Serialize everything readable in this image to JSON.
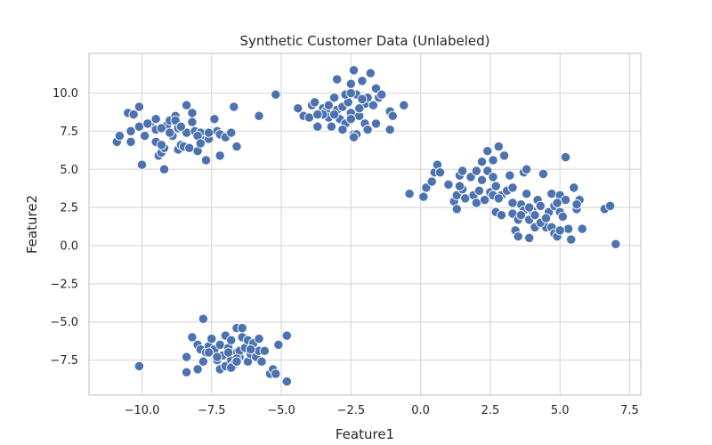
{
  "chart_data": {
    "type": "scatter",
    "title": "Synthetic Customer Data (Unlabeled)",
    "xlabel": "Feature1",
    "ylabel": "Feature2",
    "xlim": [
      -11.9,
      7.9
    ],
    "ylim": [
      -9.8,
      12.6
    ],
    "x_ticks": [
      -10,
      -7.5,
      -5,
      -2.5,
      0,
      2.5,
      5,
      7.5
    ],
    "x_tick_labels": [
      "−10.0",
      "−7.5",
      "−5.0",
      "−2.5",
      "0.0",
      "2.5",
      "5.0",
      "7.5"
    ],
    "y_ticks": [
      10,
      7.5,
      5,
      2.5,
      0,
      -2.5,
      -5,
      -7.5
    ],
    "y_tick_labels": [
      "10.0",
      "7.5",
      "5.0",
      "2.5",
      "0.0",
      "−2.5",
      "−5.0",
      "−7.5"
    ],
    "grid": true,
    "colors": {
      "marker": "#4C72B0",
      "marker_edge": "#ffffff",
      "grid": "#d9d9d9",
      "frame": "#cccccc",
      "text": "#262626"
    },
    "points": [
      [
        -10.9,
        6.8
      ],
      [
        -10.8,
        7.2
      ],
      [
        -10.5,
        8.7
      ],
      [
        -10.4,
        7.5
      ],
      [
        -10.4,
        6.8
      ],
      [
        -10.3,
        8.6
      ],
      [
        -10.1,
        9.1
      ],
      [
        -10.1,
        7.8
      ],
      [
        -9.9,
        7.2
      ],
      [
        -9.7,
        8.0
      ],
      [
        -9.5,
        6.8
      ],
      [
        -9.5,
        7.6
      ],
      [
        -9.4,
        5.9
      ],
      [
        -9.3,
        6.1
      ],
      [
        -9.2,
        6.4
      ],
      [
        -9.1,
        7.9
      ],
      [
        -9.0,
        8.2
      ],
      [
        -8.9,
        7.2
      ],
      [
        -8.8,
        8.5
      ],
      [
        -8.7,
        6.3
      ],
      [
        -8.7,
        7.7
      ],
      [
        -8.6,
        6.6
      ],
      [
        -8.5,
        6.5
      ],
      [
        -8.4,
        7.4
      ],
      [
        -8.4,
        9.2
      ],
      [
        -8.3,
        6.4
      ],
      [
        -8.2,
        8.1
      ],
      [
        -8.2,
        8.7
      ],
      [
        -8.1,
        7.5
      ],
      [
        -8.0,
        6.2
      ],
      [
        -7.9,
        7.4
      ],
      [
        -7.8,
        6.9
      ],
      [
        -7.7,
        5.6
      ],
      [
        -7.6,
        7.0
      ],
      [
        -7.4,
        8.3
      ],
      [
        -7.3,
        7.5
      ],
      [
        -7.2,
        7.3
      ],
      [
        -7.2,
        5.9
      ],
      [
        -7.0,
        7.1
      ],
      [
        -6.8,
        7.4
      ],
      [
        -6.7,
        9.1
      ],
      [
        -6.6,
        6.5
      ],
      [
        -10.0,
        5.3
      ],
      [
        -9.2,
        5.0
      ],
      [
        -9.5,
        8.3
      ],
      [
        -9.0,
        7.4
      ],
      [
        -8.0,
        7.2
      ],
      [
        -8.8,
        8.2
      ],
      [
        -9.8,
        8.0
      ],
      [
        -9.3,
        7.7
      ],
      [
        -8.6,
        7.8
      ],
      [
        -7.6,
        7.4
      ],
      [
        -7.9,
        6.7
      ],
      [
        -9.3,
        6.6
      ],
      [
        -5.8,
        8.5
      ],
      [
        -5.2,
        9.9
      ],
      [
        -4.4,
        9.0
      ],
      [
        -4.2,
        8.5
      ],
      [
        -4.0,
        8.4
      ],
      [
        -3.9,
        9.2
      ],
      [
        -3.8,
        9.4
      ],
      [
        -3.7,
        7.8
      ],
      [
        -3.5,
        9.0
      ],
      [
        -3.4,
        8.8
      ],
      [
        -3.3,
        8.4
      ],
      [
        -3.2,
        7.8
      ],
      [
        -3.1,
        9.7
      ],
      [
        -3.0,
        10.9
      ],
      [
        -3.0,
        8.9
      ],
      [
        -2.9,
        8.3
      ],
      [
        -2.8,
        9.1
      ],
      [
        -2.7,
        8.0
      ],
      [
        -2.6,
        9.4
      ],
      [
        -2.5,
        10.6
      ],
      [
        -2.5,
        8.7
      ],
      [
        -2.4,
        11.5
      ],
      [
        -2.4,
        7.3
      ],
      [
        -2.3,
        9.9
      ],
      [
        -2.2,
        8.5
      ],
      [
        -2.1,
        10.8
      ],
      [
        -2.0,
        9.3
      ],
      [
        -2.0,
        8.0
      ],
      [
        -1.9,
        7.6
      ],
      [
        -1.8,
        11.3
      ],
      [
        -1.7,
        9.2
      ],
      [
        -1.6,
        10.3
      ],
      [
        -1.5,
        9.7
      ],
      [
        -1.4,
        9.9
      ],
      [
        -1.1,
        8.8
      ],
      [
        -1.1,
        7.6
      ],
      [
        -0.6,
        9.2
      ],
      [
        -3.5,
        8.6
      ],
      [
        -3.1,
        8.6
      ],
      [
        -2.7,
        9.9
      ],
      [
        -2.5,
        8.3
      ],
      [
        -2.2,
        9.0
      ],
      [
        -1.6,
        8.0
      ],
      [
        -3.7,
        8.6
      ],
      [
        -2.8,
        7.6
      ],
      [
        -2.3,
        7.3
      ],
      [
        -3.3,
        9.2
      ],
      [
        -2.5,
        10.0
      ],
      [
        -1.9,
        9.7
      ],
      [
        -1.0,
        8.5
      ],
      [
        -2.4,
        7.1
      ],
      [
        -2.1,
        9.6
      ],
      [
        -10.1,
        -7.9
      ],
      [
        -8.4,
        -7.3
      ],
      [
        -8.4,
        -8.3
      ],
      [
        -8.2,
        -6.0
      ],
      [
        -8.0,
        -8.1
      ],
      [
        -8.0,
        -6.5
      ],
      [
        -7.9,
        -6.8
      ],
      [
        -7.8,
        -4.8
      ],
      [
        -7.8,
        -7.6
      ],
      [
        -7.7,
        -7.0
      ],
      [
        -7.6,
        -6.6
      ],
      [
        -7.5,
        -6.1
      ],
      [
        -7.4,
        -6.8
      ],
      [
        -7.3,
        -7.5
      ],
      [
        -7.2,
        -8.1
      ],
      [
        -7.2,
        -6.5
      ],
      [
        -7.1,
        -7.2
      ],
      [
        -7.0,
        -5.9
      ],
      [
        -7.0,
        -7.9
      ],
      [
        -6.9,
        -6.7
      ],
      [
        -6.8,
        -7.5
      ],
      [
        -6.8,
        -6.2
      ],
      [
        -6.7,
        -7.8
      ],
      [
        -6.6,
        -5.4
      ],
      [
        -6.6,
        -7.0
      ],
      [
        -6.5,
        -7.3
      ],
      [
        -6.5,
        -6.9
      ],
      [
        -6.4,
        -6.0
      ],
      [
        -6.4,
        -5.4
      ],
      [
        -6.3,
        -6.7
      ],
      [
        -6.2,
        -7.6
      ],
      [
        -6.2,
        -6.2
      ],
      [
        -6.1,
        -7.1
      ],
      [
        -6.0,
        -6.4
      ],
      [
        -5.9,
        -7.3
      ],
      [
        -5.8,
        -6.9
      ],
      [
        -5.8,
        -6.1
      ],
      [
        -5.7,
        -7.6
      ],
      [
        -5.6,
        -6.9
      ],
      [
        -5.4,
        -8.4
      ],
      [
        -5.3,
        -8.1
      ],
      [
        -5.2,
        -8.4
      ],
      [
        -5.1,
        -6.5
      ],
      [
        -4.8,
        -5.9
      ],
      [
        -4.8,
        -8.9
      ],
      [
        -7.3,
        -7.3
      ],
      [
        -6.6,
        -7.4
      ],
      [
        -6.9,
        -7.0
      ],
      [
        -6.1,
        -6.8
      ],
      [
        -6.8,
        -8.0
      ],
      [
        -7.6,
        -7.0
      ],
      [
        -6.6,
        -7.6
      ],
      [
        -0.4,
        3.4
      ],
      [
        0.1,
        3.2
      ],
      [
        0.2,
        3.8
      ],
      [
        0.4,
        4.2
      ],
      [
        0.5,
        4.8
      ],
      [
        0.6,
        5.3
      ],
      [
        0.7,
        4.8
      ],
      [
        1.0,
        4.0
      ],
      [
        1.2,
        2.9
      ],
      [
        1.3,
        2.4
      ],
      [
        1.3,
        3.3
      ],
      [
        1.4,
        4.6
      ],
      [
        1.5,
        3.7
      ],
      [
        1.5,
        4.9
      ],
      [
        1.6,
        3.1
      ],
      [
        1.8,
        4.5
      ],
      [
        1.9,
        3.3
      ],
      [
        2.0,
        2.8
      ],
      [
        2.1,
        3.6
      ],
      [
        2.2,
        4.3
      ],
      [
        2.2,
        5.5
      ],
      [
        2.3,
        3.0
      ],
      [
        2.4,
        4.9
      ],
      [
        2.4,
        6.2
      ],
      [
        2.5,
        3.5
      ],
      [
        2.6,
        4.5
      ],
      [
        2.6,
        5.6
      ],
      [
        2.7,
        2.2
      ],
      [
        2.7,
        3.9
      ],
      [
        2.8,
        6.5
      ],
      [
        2.9,
        3.3
      ],
      [
        2.9,
        2.0
      ],
      [
        3.0,
        5.9
      ],
      [
        3.1,
        3.6
      ],
      [
        3.2,
        4.6
      ],
      [
        3.3,
        2.1
      ],
      [
        3.3,
        3.8
      ],
      [
        3.4,
        1.0
      ],
      [
        3.5,
        1.7
      ],
      [
        3.5,
        0.6
      ],
      [
        3.6,
        2.7
      ],
      [
        3.7,
        4.8
      ],
      [
        3.7,
        2.3
      ],
      [
        3.8,
        5.0
      ],
      [
        3.8,
        3.4
      ],
      [
        3.9,
        1.7
      ],
      [
        3.9,
        0.5
      ],
      [
        4.0,
        2.3
      ],
      [
        4.1,
        1.2
      ],
      [
        4.1,
        2.0
      ],
      [
        4.2,
        3.0
      ],
      [
        4.3,
        2.6
      ],
      [
        4.4,
        4.7
      ],
      [
        4.5,
        1.2
      ],
      [
        4.6,
        2.2
      ],
      [
        4.7,
        3.4
      ],
      [
        4.7,
        1.2
      ],
      [
        4.8,
        0.8
      ],
      [
        4.8,
        2.6
      ],
      [
        4.9,
        0.6
      ],
      [
        5.0,
        3.3
      ],
      [
        5.0,
        2.2
      ],
      [
        5.1,
        1.9
      ],
      [
        5.2,
        5.8
      ],
      [
        5.2,
        3.0
      ],
      [
        5.3,
        1.1
      ],
      [
        5.4,
        0.4
      ],
      [
        5.5,
        3.8
      ],
      [
        5.6,
        2.4
      ],
      [
        5.7,
        3.0
      ],
      [
        5.8,
        1.1
      ],
      [
        6.6,
        2.4
      ],
      [
        6.8,
        2.6
      ],
      [
        7.0,
        0.1
      ],
      [
        1.4,
        3.9
      ],
      [
        2.0,
        4.9
      ],
      [
        2.6,
        3.3
      ],
      [
        4.3,
        1.5
      ],
      [
        4.9,
        2.8
      ],
      [
        5.6,
        2.7
      ],
      [
        3.9,
        2.5
      ],
      [
        2.8,
        3.1
      ],
      [
        4.5,
        1.8
      ],
      [
        5.0,
        1.0
      ],
      [
        3.6,
        2.0
      ],
      [
        3.3,
        2.8
      ]
    ]
  }
}
